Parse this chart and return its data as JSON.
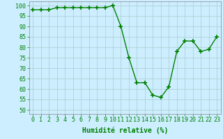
{
  "x": [
    0,
    1,
    2,
    3,
    4,
    5,
    6,
    7,
    8,
    9,
    10,
    11,
    12,
    13,
    14,
    15,
    16,
    17,
    18,
    19,
    20,
    21,
    22,
    23
  ],
  "y": [
    98,
    98,
    98,
    99,
    99,
    99,
    99,
    99,
    99,
    99,
    100,
    90,
    75,
    63,
    63,
    57,
    56,
    61,
    78,
    83,
    83,
    78,
    79,
    85
  ],
  "line_color": "#008000",
  "marker": "+",
  "marker_size": 4,
  "marker_linewidth": 1.2,
  "line_width": 1.0,
  "background_color": "#cceeff",
  "grid_color": "#aacccc",
  "xlabel": "Humidité relative (%)",
  "tick_color": "#008000",
  "xlabel_color": "#008000",
  "xlabel_fontsize": 7,
  "tick_fontsize": 6,
  "ylabel_ticks": [
    50,
    55,
    60,
    65,
    70,
    75,
    80,
    85,
    90,
    95,
    100
  ],
  "ylim": [
    48,
    102
  ],
  "xlim": [
    -0.5,
    23.5
  ]
}
